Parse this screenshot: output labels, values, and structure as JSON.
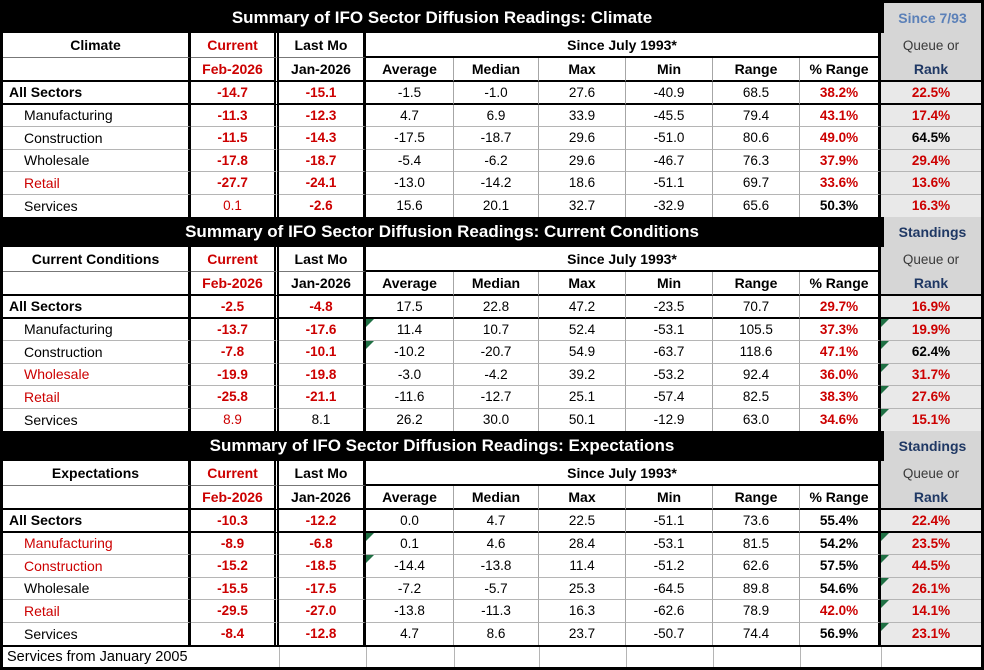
{
  "footer": "Services from January 2005",
  "columns": [
    "Average",
    "Median",
    "Max",
    "Min",
    "Range",
    "% Range"
  ],
  "colors": {
    "negative_red": "#cc0000",
    "rank_navy": "#1f3864",
    "badge_blue": "#5b80b8",
    "flag_green": "#1f7044"
  },
  "sections": [
    {
      "title": "Summary of IFO Sector Diffusion Readings: Climate",
      "badge": "Since 7/93",
      "badge_style": "blue",
      "label": "Climate",
      "current_label": "Current",
      "lastmo_label": "Last Mo",
      "current_sub": "Feb-2026",
      "lastmo_sub": "Jan-2026",
      "since_label": "Since July 1993*",
      "queue_label": "Queue or",
      "rank_label": "Rank",
      "rows": [
        {
          "name": "All Sectors",
          "name_red": false,
          "cur": "-14.7",
          "cur_s": "rb",
          "last": "-15.1",
          "last_s": "rb",
          "avg": "-1.5",
          "med": "-1.0",
          "max": "27.6",
          "min": "-40.9",
          "rng": "68.5",
          "pct": "38.2%",
          "pct_s": "rb",
          "rank": "22.5%",
          "rank_s": "rb",
          "avg_mark": false,
          "rank_mark": false
        },
        {
          "name": "Manufacturing",
          "name_red": false,
          "cur": "-11.3",
          "cur_s": "rb",
          "last": "-12.3",
          "last_s": "rb",
          "avg": "4.7",
          "med": "6.9",
          "max": "33.9",
          "min": "-45.5",
          "rng": "79.4",
          "pct": "43.1%",
          "pct_s": "rb",
          "rank": "17.4%",
          "rank_s": "rb",
          "avg_mark": false,
          "rank_mark": false
        },
        {
          "name": "Construction",
          "name_red": false,
          "cur": "-11.5",
          "cur_s": "rb",
          "last": "-14.3",
          "last_s": "rb",
          "avg": "-17.5",
          "med": "-18.7",
          "max": "29.6",
          "min": "-51.0",
          "rng": "80.6",
          "pct": "49.0%",
          "pct_s": "rb",
          "rank": "64.5%",
          "rank_s": "b",
          "avg_mark": false,
          "rank_mark": false
        },
        {
          "name": "Wholesale",
          "name_red": false,
          "cur": "-17.8",
          "cur_s": "rb",
          "last": "-18.7",
          "last_s": "rb",
          "avg": "-5.4",
          "med": "-6.2",
          "max": "29.6",
          "min": "-46.7",
          "rng": "76.3",
          "pct": "37.9%",
          "pct_s": "rb",
          "rank": "29.4%",
          "rank_s": "rb",
          "avg_mark": false,
          "rank_mark": false
        },
        {
          "name": "Retail",
          "name_red": true,
          "cur": "-27.7",
          "cur_s": "rb",
          "last": "-24.1",
          "last_s": "rb",
          "avg": "-13.0",
          "med": "-14.2",
          "max": "18.6",
          "min": "-51.1",
          "rng": "69.7",
          "pct": "33.6%",
          "pct_s": "rb",
          "rank": "13.6%",
          "rank_s": "rb",
          "avg_mark": false,
          "rank_mark": false
        },
        {
          "name": "Services",
          "name_red": false,
          "cur": "0.1",
          "cur_s": "r",
          "last": "-2.6",
          "last_s": "rb",
          "avg": "15.6",
          "med": "20.1",
          "max": "32.7",
          "min": "-32.9",
          "rng": "65.6",
          "pct": "50.3%",
          "pct_s": "b",
          "rank": "16.3%",
          "rank_s": "rb",
          "avg_mark": false,
          "rank_mark": false
        }
      ]
    },
    {
      "title": "Summary of IFO Sector Diffusion Readings: Current Conditions",
      "badge": "Standings",
      "badge_style": "navy",
      "label": "Current Conditions",
      "current_label": "Current",
      "lastmo_label": "Last Mo",
      "current_sub": "Feb-2026",
      "lastmo_sub": "Jan-2026",
      "since_label": "Since July 1993*",
      "queue_label": "Queue or",
      "rank_label": "Rank",
      "rows": [
        {
          "name": "All Sectors",
          "name_red": false,
          "cur": "-2.5",
          "cur_s": "rb",
          "last": "-4.8",
          "last_s": "rb",
          "avg": "17.5",
          "med": "22.8",
          "max": "47.2",
          "min": "-23.5",
          "rng": "70.7",
          "pct": "29.7%",
          "pct_s": "rb",
          "rank": "16.9%",
          "rank_s": "rb",
          "avg_mark": false,
          "rank_mark": false
        },
        {
          "name": "Manufacturing",
          "name_red": false,
          "cur": "-13.7",
          "cur_s": "rb",
          "last": "-17.6",
          "last_s": "rb",
          "avg": "11.4",
          "med": "10.7",
          "max": "52.4",
          "min": "-53.1",
          "rng": "105.5",
          "pct": "37.3%",
          "pct_s": "rb",
          "rank": "19.9%",
          "rank_s": "rb",
          "avg_mark": true,
          "rank_mark": true
        },
        {
          "name": "Construction",
          "name_red": false,
          "cur": "-7.8",
          "cur_s": "rb",
          "last": "-10.1",
          "last_s": "rb",
          "avg": "-10.2",
          "med": "-20.7",
          "max": "54.9",
          "min": "-63.7",
          "rng": "118.6",
          "pct": "47.1%",
          "pct_s": "rb",
          "rank": "62.4%",
          "rank_s": "b",
          "avg_mark": true,
          "rank_mark": true
        },
        {
          "name": "Wholesale",
          "name_red": true,
          "cur": "-19.9",
          "cur_s": "rb",
          "last": "-19.8",
          "last_s": "rb",
          "avg": "-3.0",
          "med": "-4.2",
          "max": "39.2",
          "min": "-53.2",
          "rng": "92.4",
          "pct": "36.0%",
          "pct_s": "rb",
          "rank": "31.7%",
          "rank_s": "rb",
          "avg_mark": false,
          "rank_mark": true
        },
        {
          "name": "Retail",
          "name_red": true,
          "cur": "-25.8",
          "cur_s": "rb",
          "last": "-21.1",
          "last_s": "rb",
          "avg": "-11.6",
          "med": "-12.7",
          "max": "25.1",
          "min": "-57.4",
          "rng": "82.5",
          "pct": "38.3%",
          "pct_s": "rb",
          "rank": "27.6%",
          "rank_s": "rb",
          "avg_mark": false,
          "rank_mark": true
        },
        {
          "name": "Services",
          "name_red": false,
          "cur": "8.9",
          "cur_s": "r",
          "last": "8.1",
          "last_s": "n",
          "avg": "26.2",
          "med": "30.0",
          "max": "50.1",
          "min": "-12.9",
          "rng": "63.0",
          "pct": "34.6%",
          "pct_s": "rb",
          "rank": "15.1%",
          "rank_s": "rb",
          "avg_mark": false,
          "rank_mark": true
        }
      ]
    },
    {
      "title": "Summary of IFO Sector Diffusion Readings: Expectations",
      "badge": "Standings",
      "badge_style": "navy",
      "label": "Expectations",
      "current_label": "Current",
      "lastmo_label": "Last Mo",
      "current_sub": "Feb-2026",
      "lastmo_sub": "Jan-2026",
      "since_label": "Since July 1993*",
      "queue_label": "Queue or",
      "rank_label": "Rank",
      "rows": [
        {
          "name": "All Sectors",
          "name_red": false,
          "cur": "-10.3",
          "cur_s": "rb",
          "last": "-12.2",
          "last_s": "rb",
          "avg": "0.0",
          "med": "4.7",
          "max": "22.5",
          "min": "-51.1",
          "rng": "73.6",
          "pct": "55.4%",
          "pct_s": "b",
          "rank": "22.4%",
          "rank_s": "rb",
          "avg_mark": false,
          "rank_mark": false
        },
        {
          "name": "Manufacturing",
          "name_red": true,
          "cur": "-8.9",
          "cur_s": "rb",
          "last": "-6.8",
          "last_s": "rb",
          "avg": "0.1",
          "med": "4.6",
          "max": "28.4",
          "min": "-53.1",
          "rng": "81.5",
          "pct": "54.2%",
          "pct_s": "b",
          "rank": "23.5%",
          "rank_s": "rb",
          "avg_mark": true,
          "rank_mark": true
        },
        {
          "name": "Construction",
          "name_red": true,
          "cur": "-15.2",
          "cur_s": "rb",
          "last": "-18.5",
          "last_s": "rb",
          "avg": "-14.4",
          "med": "-13.8",
          "max": "11.4",
          "min": "-51.2",
          "rng": "62.6",
          "pct": "57.5%",
          "pct_s": "b",
          "rank": "44.5%",
          "rank_s": "rb",
          "avg_mark": true,
          "rank_mark": true
        },
        {
          "name": "Wholesale",
          "name_red": false,
          "cur": "-15.5",
          "cur_s": "rb",
          "last": "-17.5",
          "last_s": "rb",
          "avg": "-7.2",
          "med": "-5.7",
          "max": "25.3",
          "min": "-64.5",
          "rng": "89.8",
          "pct": "54.6%",
          "pct_s": "b",
          "rank": "26.1%",
          "rank_s": "rb",
          "avg_mark": false,
          "rank_mark": true
        },
        {
          "name": "Retail",
          "name_red": true,
          "cur": "-29.5",
          "cur_s": "rb",
          "last": "-27.0",
          "last_s": "rb",
          "avg": "-13.8",
          "med": "-11.3",
          "max": "16.3",
          "min": "-62.6",
          "rng": "78.9",
          "pct": "42.0%",
          "pct_s": "rb",
          "rank": "14.1%",
          "rank_s": "rb",
          "avg_mark": false,
          "rank_mark": true
        },
        {
          "name": "Services",
          "name_red": false,
          "cur": "-8.4",
          "cur_s": "rb",
          "last": "-12.8",
          "last_s": "rb",
          "avg": "4.7",
          "med": "8.6",
          "max": "23.7",
          "min": "-50.7",
          "rng": "74.4",
          "pct": "56.9%",
          "pct_s": "b",
          "rank": "23.1%",
          "rank_s": "rb",
          "avg_mark": false,
          "rank_mark": true
        }
      ]
    }
  ]
}
